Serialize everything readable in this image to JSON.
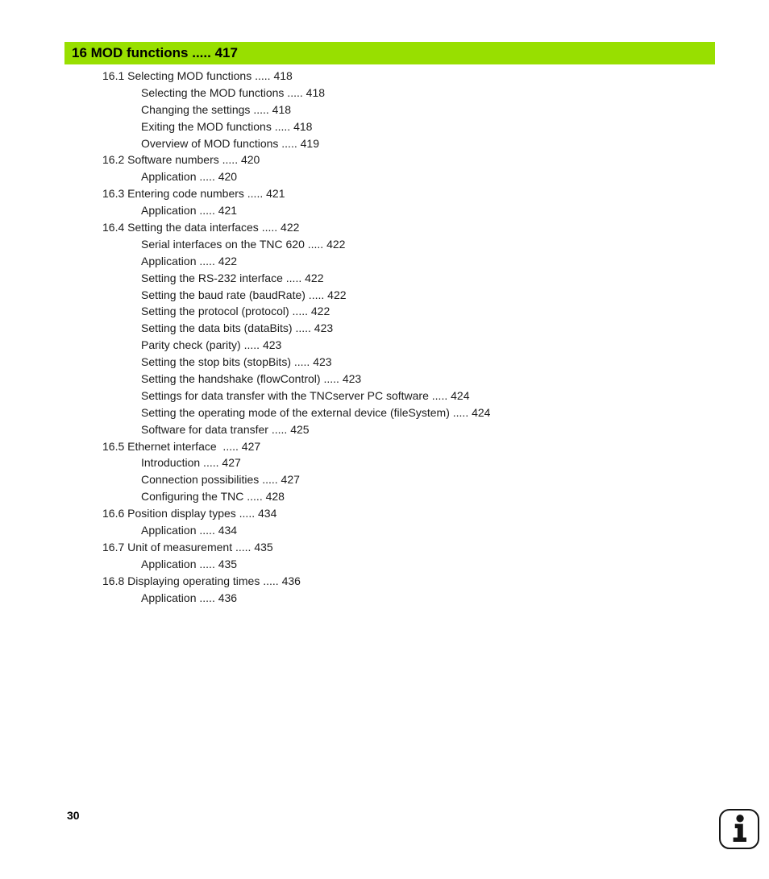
{
  "header": {
    "title": "16 MOD functions",
    "dots": " ..... ",
    "page": "417"
  },
  "toc": {
    "dots": " ..... ",
    "entries": [
      {
        "level": 1,
        "title": "16.1 Selecting MOD functions",
        "page": "418"
      },
      {
        "level": 2,
        "title": "Selecting the MOD functions",
        "page": "418"
      },
      {
        "level": 2,
        "title": "Changing the settings",
        "page": "418"
      },
      {
        "level": 2,
        "title": "Exiting the MOD functions",
        "page": "418"
      },
      {
        "level": 2,
        "title": "Overview of MOD functions",
        "page": "419"
      },
      {
        "level": 1,
        "title": "16.2 Software numbers",
        "page": "420"
      },
      {
        "level": 2,
        "title": "Application",
        "page": "420"
      },
      {
        "level": 1,
        "title": "16.3 Entering code numbers",
        "page": "421"
      },
      {
        "level": 2,
        "title": "Application",
        "page": "421"
      },
      {
        "level": 1,
        "title": "16.4 Setting the data interfaces",
        "page": "422"
      },
      {
        "level": 2,
        "title": "Serial interfaces on the TNC 620",
        "page": "422"
      },
      {
        "level": 2,
        "title": "Application",
        "page": "422"
      },
      {
        "level": 2,
        "title": "Setting the RS-232 interface",
        "page": "422"
      },
      {
        "level": 2,
        "title": "Setting the baud rate (baudRate)",
        "page": "422"
      },
      {
        "level": 2,
        "title": "Setting the protocol (protocol)",
        "page": "422"
      },
      {
        "level": 2,
        "title": "Setting the data bits (dataBits)",
        "page": "423"
      },
      {
        "level": 2,
        "title": "Parity check (parity)",
        "page": "423"
      },
      {
        "level": 2,
        "title": "Setting the stop bits (stopBits)",
        "page": "423"
      },
      {
        "level": 2,
        "title": "Setting the handshake (flowControl)",
        "page": "423"
      },
      {
        "level": 2,
        "title": "Settings for data transfer with the TNCserver PC software",
        "page": "424"
      },
      {
        "level": 2,
        "title": "Setting the operating mode of the external device (fileSystem)",
        "page": "424"
      },
      {
        "level": 2,
        "title": "Software for data transfer",
        "page": "425"
      },
      {
        "level": 1,
        "title": "16.5 Ethernet interface ",
        "page": "427"
      },
      {
        "level": 2,
        "title": "Introduction",
        "page": "427"
      },
      {
        "level": 2,
        "title": "Connection possibilities",
        "page": "427"
      },
      {
        "level": 2,
        "title": "Configuring the TNC",
        "page": "428"
      },
      {
        "level": 1,
        "title": "16.6 Position display types",
        "page": "434"
      },
      {
        "level": 2,
        "title": "Application",
        "page": "434"
      },
      {
        "level": 1,
        "title": "16.7 Unit of measurement",
        "page": "435"
      },
      {
        "level": 2,
        "title": "Application",
        "page": "435"
      },
      {
        "level": 1,
        "title": "16.8 Displaying operating times",
        "page": "436"
      },
      {
        "level": 2,
        "title": "Application",
        "page": "436"
      }
    ]
  },
  "footer": {
    "page_number": "30"
  },
  "icons": {
    "bottom_right": "info-icon"
  },
  "colors": {
    "chapter_bar_green": "#98DF00",
    "text": "#1C1C1C"
  }
}
